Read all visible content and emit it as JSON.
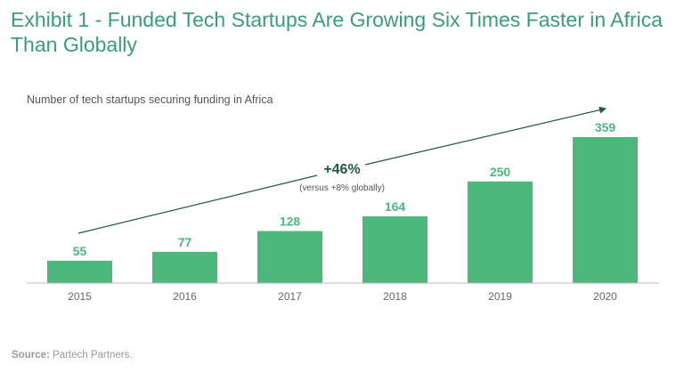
{
  "chart_data": {
    "type": "bar",
    "title": "Exhibit 1 - Funded Tech Startups Are Growing Six Times Faster in Africa Than Globally",
    "subtitle": "Number of tech startups securing funding in Africa",
    "categories": [
      "2015",
      "2016",
      "2017",
      "2018",
      "2019",
      "2020"
    ],
    "values": [
      55,
      77,
      128,
      164,
      250,
      359
    ],
    "xlabel": "",
    "ylabel": "",
    "ylim": [
      0,
      359
    ],
    "grid": false,
    "annotation": {
      "main": "+46%",
      "sub": "(versus +8% globally)"
    },
    "bar_color": "#4db87c",
    "arrow_color": "#1f5c3f"
  },
  "source": {
    "label": "Source:",
    "text": " Partech Partners."
  }
}
